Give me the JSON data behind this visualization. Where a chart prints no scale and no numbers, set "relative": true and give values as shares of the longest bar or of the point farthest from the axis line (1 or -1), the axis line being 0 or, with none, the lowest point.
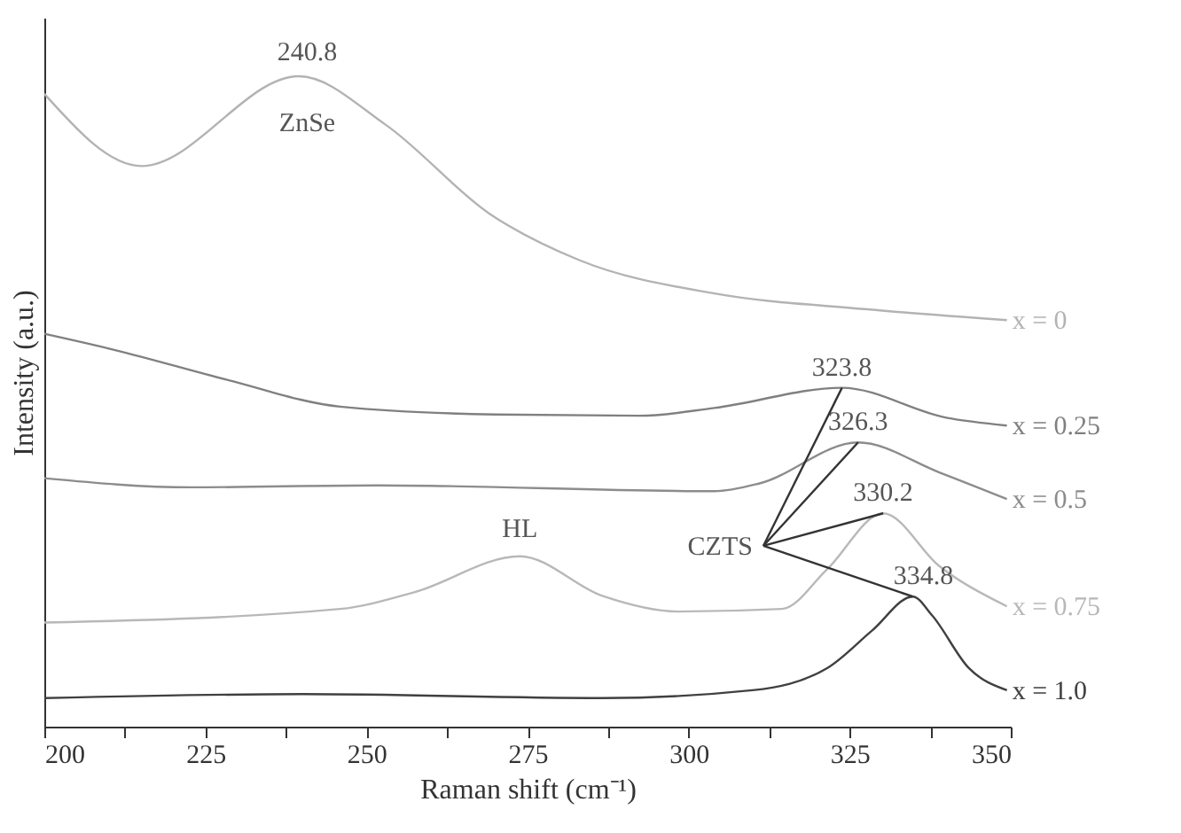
{
  "chart_data": {
    "type": "line",
    "relative": true,
    "xlabel": "Raman shift (cm⁻¹)",
    "ylabel": "Intensity (a.u.)",
    "xlim": [
      200,
      350
    ],
    "xticks": [
      200,
      {
        "value": 212.5,
        "label": null
      },
      225,
      {
        "value": 237.5,
        "label": null
      },
      250,
      {
        "value": 262.5,
        "label": null
      },
      275,
      {
        "value": 287.5,
        "label": null
      },
      300,
      {
        "value": 312.5,
        "label": null
      },
      325,
      {
        "value": 337.5,
        "label": null
      },
      350
    ],
    "legend": false,
    "grid": false,
    "marker": "none",
    "line_style": "solid",
    "series": [
      {
        "name": "x = 0",
        "color": "#b3b3b3",
        "x": [
          200,
          215.1,
          239.5,
          252.9,
          269.2,
          283.1,
          304,
          327.3,
          349.4
        ],
        "values": [
          0.973,
          0.862,
          1.0,
          0.926,
          0.788,
          0.717,
          0.666,
          0.642,
          0.625
        ]
      },
      {
        "name": "x = 0.25",
        "color": "#808080",
        "x": [
          200,
          211,
          228.5,
          245.9,
          270,
          292.4,
          304,
          323.8,
          340,
          349.4
        ],
        "values": [
          0.604,
          0.579,
          0.533,
          0.492,
          0.48,
          0.478,
          0.49,
          0.521,
          0.475,
          0.463
        ]
      },
      {
        "name": "x = 0.5",
        "color": "#8c8c8c",
        "x": [
          200,
          222.7,
          251.7,
          304,
          311,
          326.3,
          338.9,
          349.4
        ],
        "values": [
          0.382,
          0.368,
          0.371,
          0.362,
          0.374,
          0.437,
          0.391,
          0.35
        ]
      },
      {
        "name": "x = 0.75",
        "color": "#b8b8b8",
        "x": [
          200,
          245.9,
          257.5,
          273.8,
          286.6,
          298.3,
          314.5,
          321.5,
          330.2,
          338.9,
          349.4
        ],
        "values": [
          0.16,
          0.181,
          0.207,
          0.262,
          0.201,
          0.177,
          0.181,
          0.242,
          0.328,
          0.247,
          0.185
        ]
      },
      {
        "name": "x = 1.0",
        "color": "#404040",
        "x": [
          200,
          240.1,
          286.6,
          309.9,
          321.5,
          328.5,
          334.8,
          337.8,
          343.5,
          349.4
        ],
        "values": [
          0.044,
          0.05,
          0.044,
          0.056,
          0.09,
          0.148,
          0.2,
          0.171,
          0.09,
          0.056
        ]
      }
    ],
    "annotations": [
      {
        "text": "240.8",
        "x": 240.8,
        "y": 1.0
      },
      {
        "text": "ZnSe",
        "x": 240.8,
        "y": 1.0
      },
      {
        "text": "323.8",
        "x": 323.8,
        "y": 0.521
      },
      {
        "text": "326.3",
        "x": 326.3,
        "y": 0.437
      },
      {
        "text": "330.2",
        "x": 330.2,
        "y": 0.328
      },
      {
        "text": "334.8",
        "x": 334.8,
        "y": 0.2
      },
      {
        "text": "HL",
        "x": 273.8,
        "y": 0.262
      },
      "CZTS"
    ]
  }
}
